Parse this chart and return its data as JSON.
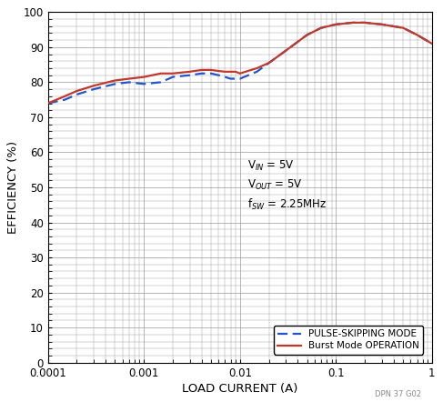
{
  "xlabel": "LOAD CURRENT (A)",
  "ylabel": "EFFICIENCY (%)",
  "xlim": [
    0.0001,
    1
  ],
  "ylim": [
    0,
    100
  ],
  "yticks": [
    0,
    10,
    20,
    30,
    40,
    50,
    60,
    70,
    80,
    90,
    100
  ],
  "xticks": [
    0.0001,
    0.001,
    0.01,
    0.1,
    1
  ],
  "xtick_labels": [
    "0.0001",
    "0.001",
    "0.01",
    "0.1",
    "1"
  ],
  "burst_x": [
    0.0001,
    0.00015,
    0.0002,
    0.0003,
    0.0005,
    0.0007,
    0.001,
    0.0015,
    0.002,
    0.003,
    0.004,
    0.005,
    0.006,
    0.007,
    0.008,
    0.009,
    0.01,
    0.015,
    0.02,
    0.03,
    0.05,
    0.07,
    0.1,
    0.15,
    0.2,
    0.3,
    0.5,
    0.7,
    1.0
  ],
  "burst_y": [
    74.0,
    76.0,
    77.5,
    79.0,
    80.5,
    81.0,
    81.5,
    82.5,
    82.5,
    83.0,
    83.5,
    83.5,
    83.2,
    83.0,
    83.0,
    83.0,
    82.5,
    84.0,
    85.5,
    89.0,
    93.5,
    95.5,
    96.5,
    97.0,
    97.0,
    96.5,
    95.5,
    93.5,
    91.0
  ],
  "pulse_x": [
    0.0001,
    0.00015,
    0.0002,
    0.0003,
    0.0005,
    0.0007,
    0.001,
    0.0015,
    0.002,
    0.003,
    0.004,
    0.005,
    0.006,
    0.007,
    0.008,
    0.009,
    0.01,
    0.015,
    0.02,
    0.03,
    0.05,
    0.07,
    0.1,
    0.15,
    0.2,
    0.3,
    0.5,
    0.7,
    1.0
  ],
  "pulse_y": [
    74.0,
    75.0,
    76.5,
    78.0,
    79.5,
    80.0,
    79.5,
    80.0,
    81.5,
    82.0,
    82.5,
    82.5,
    82.0,
    81.5,
    81.0,
    81.0,
    81.0,
    83.0,
    85.5,
    89.0,
    93.5,
    95.5,
    96.5,
    97.0,
    97.0,
    96.5,
    95.5,
    93.5,
    91.0
  ],
  "burst_color": "#c0392b",
  "pulse_color": "#2255cc",
  "bg_color": "#ffffff",
  "grid_color": "#999999",
  "annotation_text": "V$_{IN}$ = 5V\nV$_{OUT}$ = 5V\nf$_{SW}$ = 2.25MHz",
  "watermark": "DPN 37 G02"
}
